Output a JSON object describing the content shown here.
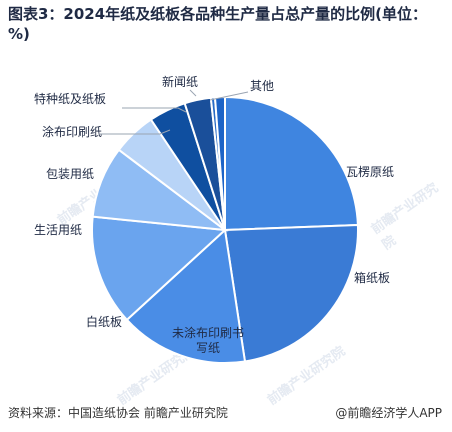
{
  "title": "图表3：2024年纸及纸板各品种生产量占总产量的比例(单位：%)",
  "source_left": "资料来源：中国造纸协会 前瞻产业研究院",
  "source_right": "@前瞻经济学人APP",
  "watermark": "前瞻产业研究院",
  "chart_data": {
    "type": "pie",
    "title": "图表3：2024年纸及纸板各品种生产量占总产量的比例(单位：%)",
    "start_angle_deg": 0,
    "direction": "clockwise",
    "slices": [
      {
        "label": "瓦楞原纸",
        "value": 24.4,
        "color": "#3f85e0"
      },
      {
        "label": "箱纸板",
        "value": 23.2,
        "color": "#3a7bd5"
      },
      {
        "label": "未涂布印刷书写纸",
        "value": 15.6,
        "color": "#4a8de6"
      },
      {
        "label": "白纸板",
        "value": 13.4,
        "color": "#6aa4ee"
      },
      {
        "label": "生活用纸",
        "value": 8.7,
        "color": "#8fbcf4"
      },
      {
        "label": "包装用纸",
        "value": 5.3,
        "color": "#b8d4f7"
      },
      {
        "label": "涂布印刷纸",
        "value": 4.5,
        "color": "#0f4fa0"
      },
      {
        "label": "特种纸及纸板",
        "value": 3.2,
        "color": "#1a4f9a"
      },
      {
        "label": "新闻纸",
        "value": 0.5,
        "color": "#2a6cc6"
      },
      {
        "label": "其他",
        "value": 1.2,
        "color": "#1d64c7"
      }
    ]
  }
}
